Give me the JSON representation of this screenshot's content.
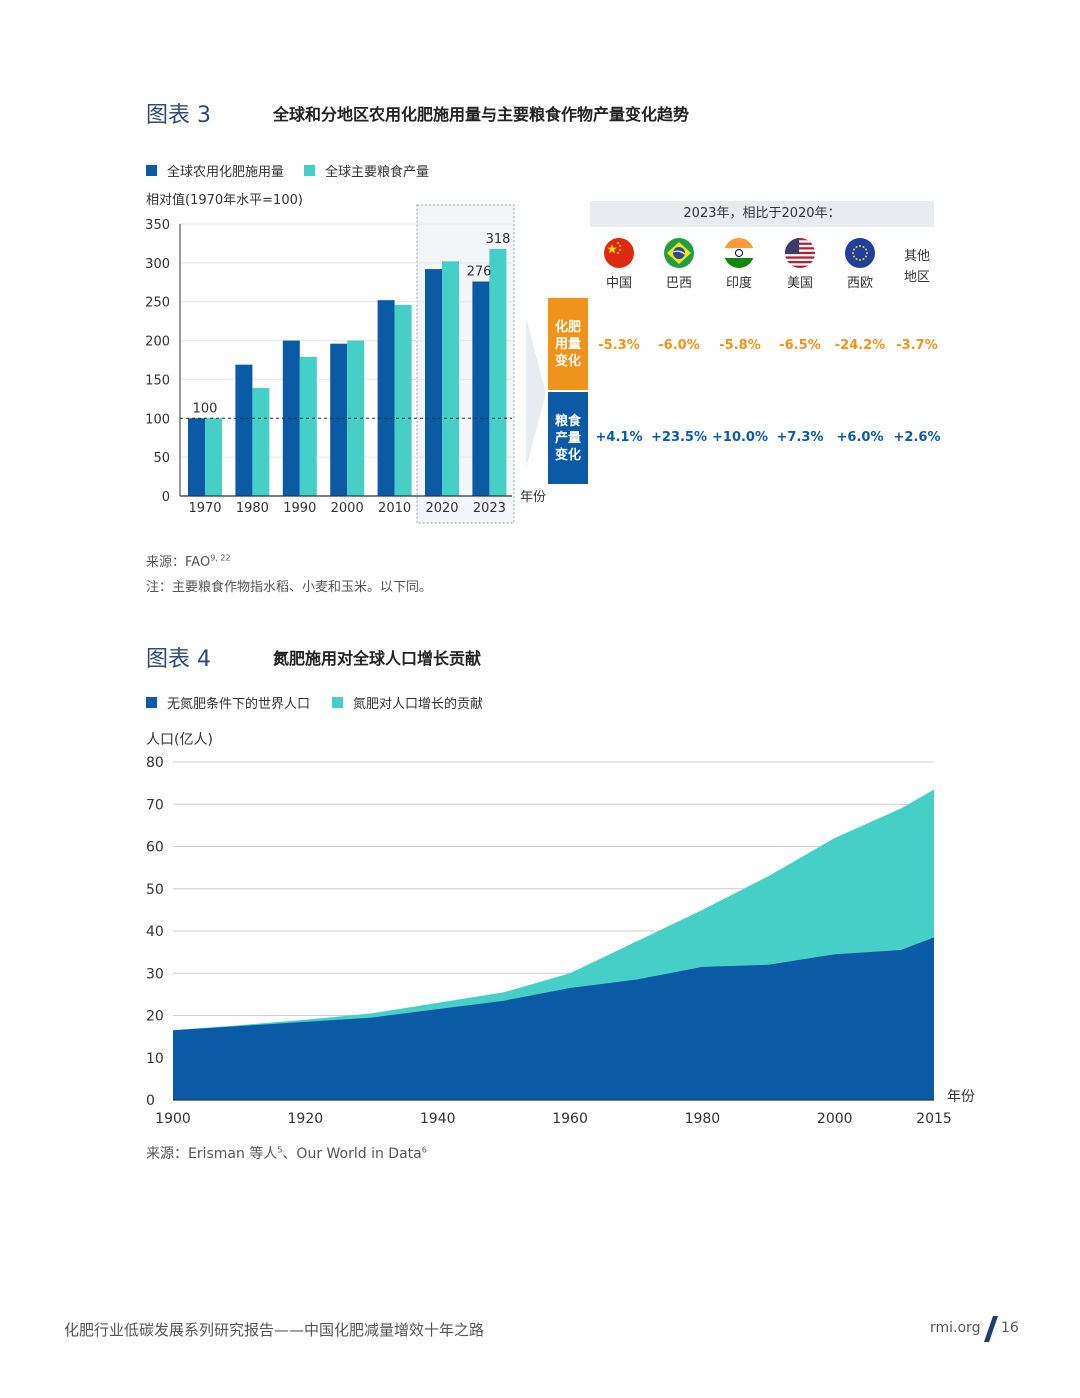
{
  "fig3": {
    "num": "图表 3",
    "title": "全球和分地区农用化肥施用量与主要粮食作物产量变化趋势",
    "legend": [
      {
        "label": "全球农用化肥施用量",
        "color": "#0a5aa6"
      },
      {
        "label": "全球主要粮食产量",
        "color": "#45cfc6"
      }
    ],
    "ylabel": "相对值(1970年水平=100)",
    "xunit": "年份",
    "source": "来源：FAO",
    "source_sup": "9, 22",
    "note": "注：主要粮食作物指水稻、小麦和玉米。以下同。"
  },
  "panel": {
    "header": "2023年，相比于2020年：",
    "countries": [
      {
        "name": "中国",
        "flag": "china-flag-icon"
      },
      {
        "name": "巴西",
        "flag": "brazil-flag-icon"
      },
      {
        "name": "印度",
        "flag": "india-flag-icon"
      },
      {
        "name": "美国",
        "flag": "usa-flag-icon"
      },
      {
        "name": "西欧",
        "flag": "eu-flag-icon"
      },
      {
        "name": "其他\n地区",
        "flag": ""
      }
    ],
    "fert_label": "化肥\n用量\n变化",
    "grain_label": "粮食\n产量\n变化",
    "fert_values": [
      "-5.3%",
      "-6.0%",
      "-5.8%",
      "-6.5%",
      "-24.2%",
      "-3.7%"
    ],
    "grain_values": [
      "+4.1%",
      "+23.5%",
      "+10.0%",
      "+7.3%",
      "+6.0%",
      "+2.6%"
    ],
    "fert_color": "#f0931a",
    "grain_color": "#0a5aa6"
  },
  "fig4": {
    "num": "图表 4",
    "title": "氮肥施用对全球人口增长贡献",
    "legend": [
      {
        "label": "无氮肥条件下的世界人口",
        "color": "#0a5aa6"
      },
      {
        "label": "氮肥对人口增长的贡献",
        "color": "#45cfc6"
      }
    ],
    "ylabel": "人口(亿人)",
    "xunit": "年份",
    "source": "来源：Erisman 等人",
    "source_sup1": "5",
    "source_mid": "、Our World in Data",
    "source_sup2": "6"
  },
  "chart_data": [
    {
      "type": "bar",
      "categories": [
        "1970",
        "1980",
        "1990",
        "2000",
        "2010",
        "2020",
        "2023"
      ],
      "series": [
        {
          "name": "全球农用化肥施用量",
          "values": [
            100,
            169,
            200,
            196,
            252,
            292,
            276
          ]
        },
        {
          "name": "全球主要粮食产量",
          "values": [
            100,
            139,
            179,
            200,
            246,
            302,
            318
          ]
        }
      ],
      "data_labels": [
        {
          "text": "100",
          "category": "1970"
        },
        {
          "text": "276",
          "category": "2023"
        },
        {
          "text": "318",
          "category": "2023"
        }
      ],
      "yticks": [
        0,
        50,
        100,
        150,
        200,
        250,
        300,
        350
      ],
      "ylim": [
        0,
        350
      ],
      "reference_line": 100,
      "highlight": [
        "2020",
        "2023"
      ]
    },
    {
      "type": "area",
      "x": [
        1900,
        1910,
        1920,
        1930,
        1940,
        1950,
        1960,
        1970,
        1980,
        1990,
        2000,
        2010,
        2015
      ],
      "series": [
        {
          "name": "无氮肥条件下的世界人口",
          "values": [
            16.5,
            17.5,
            18.5,
            19.5,
            21.5,
            23.5,
            26.5,
            28.5,
            31.5,
            32.0,
            34.5,
            35.5,
            38.5
          ]
        },
        {
          "name": "氮肥对人口增长的贡献",
          "values": [
            0.0,
            0.2,
            0.5,
            1.0,
            1.5,
            2.0,
            3.5,
            9.0,
            13.5,
            21.0,
            27.5,
            33.5,
            35.0
          ]
        }
      ],
      "xticks": [
        1900,
        1920,
        1940,
        1960,
        1980,
        2000,
        2015
      ],
      "yticks": [
        0,
        10,
        20,
        30,
        40,
        50,
        60,
        70,
        80
      ],
      "ylim": [
        0,
        80
      ]
    }
  ],
  "footer": {
    "left": "化肥行业低碳发展系列研究报告——中国化肥减量增效十年之路",
    "site": "rmi.org",
    "page": "16"
  }
}
